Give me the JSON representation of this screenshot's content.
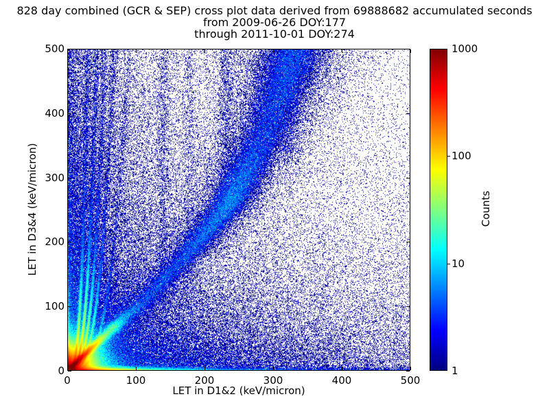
{
  "figure": {
    "title_line1": "828 day combined (GCR & SEP) cross plot data derived from 69888682 accumulated seconds",
    "title_line2": "from 2009-06-26 DOY:177",
    "title_line3": "through 2011-10-01 DOY:274"
  },
  "axes": {
    "xlabel": "LET in D1&2 (keV/micron)",
    "ylabel": "LET in D3&4 (keV/micron)",
    "x_ticks": [
      "0",
      "100",
      "200",
      "300",
      "400",
      "500"
    ],
    "y_ticks": [
      "0",
      "100",
      "200",
      "300",
      "400",
      "500"
    ],
    "x_tick_values": [
      0,
      100,
      200,
      300,
      400,
      500
    ],
    "y_tick_values": [
      0,
      100,
      200,
      300,
      400,
      500
    ]
  },
  "colorbar": {
    "label": "Counts",
    "tick_labels": [
      "1",
      "10",
      "100",
      "1000"
    ],
    "tick_values": [
      1,
      10,
      100,
      1000
    ],
    "min": 1,
    "max": 1000,
    "scale": "log",
    "colormap": "jet"
  },
  "chart_data": {
    "type": "heatmap",
    "title": "828 day combined (GCR & SEP) cross plot data derived from 69888682 accumulated seconds from 2009-06-26 DOY:177 through 2011-10-01 DOY:274",
    "xlabel": "LET in D1&2 (keV/micron)",
    "ylabel": "LET in D3&4 (keV/micron)",
    "xlim": [
      0,
      500
    ],
    "ylim": [
      0,
      500
    ],
    "counts_range": [
      1,
      1000
    ],
    "count_scale": "log10",
    "colormap": "jet",
    "zero_count_color": "#ffffff",
    "min_count_color": "#00007f",
    "max_count_color": "#7f0000",
    "bin_size_kev_per_micron": 1,
    "seed": 1337,
    "density_features": [
      {
        "kind": "corner_peak",
        "amp": 1200,
        "scale": 12
      },
      {
        "kind": "bottom_band",
        "terms": [
          [
            600,
            38
          ],
          [
            35,
            130
          ],
          [
            3,
            700
          ]
        ],
        "sigma": 2.8,
        "p": 1.3
      },
      {
        "kind": "left_band",
        "terms": [
          [
            500,
            16
          ],
          [
            28,
            55
          ],
          [
            3,
            350
          ]
        ],
        "sigma": 2.6,
        "p": 1.3
      },
      {
        "kind": "diag_streak",
        "amp": 1500,
        "len": 14,
        "w0": 2.0,
        "ws": 0.03
      },
      {
        "kind": "diag_streak",
        "amp": 10,
        "len": 30,
        "w0": 6,
        "ws": 0.1
      },
      {
        "kind": "blob",
        "cx": 68,
        "cy": 68,
        "amp": 9,
        "rx": 9,
        "ry": 7
      },
      {
        "kind": "curved_band",
        "pts": [
          [
            0,
            0
          ],
          [
            50,
            55
          ],
          [
            105,
            110
          ],
          [
            180,
            175
          ],
          [
            258,
            235
          ],
          [
            360,
            285
          ],
          [
            430,
            310
          ],
          [
            500,
            332
          ]
        ],
        "w0": 7,
        "wy": 0.05,
        "base": 1.9,
        "blobs": [
          [
            260,
            3.2,
            80
          ],
          [
            465,
            1.1,
            70
          ]
        ],
        "halo": 0.55,
        "halo_mult": 2.4
      },
      {
        "kind": "fingers",
        "c": [
          30,
          43,
          55,
          68,
          90
        ],
        "F": [
          130,
          170,
          110,
          60,
          20
        ],
        "tail": [
          1.6,
          2.0,
          1.5,
          1.2,
          0.7
        ],
        "pow": 0.3,
        "w0": 1.5,
        "wy": 0.004,
        "decay": 52,
        "tail_decay": 500
      },
      {
        "kind": "cloud",
        "amp": 4.0,
        "sx": 150,
        "sy": 45
      },
      {
        "kind": "cloud",
        "amp": 1.1,
        "sx": 320,
        "sy": 95
      },
      {
        "kind": "cloud",
        "amp": 3.5,
        "sx": 30,
        "sy": 200
      },
      {
        "kind": "cloud",
        "amp": 1.4,
        "sx": 65,
        "sy": 420
      },
      {
        "kind": "vstreak",
        "x": 140,
        "amp": 0.3,
        "w": 7,
        "ymin": 80
      },
      {
        "kind": "vstreak",
        "x": 178,
        "amp": 0.22,
        "w": 6,
        "ymin": 80
      },
      {
        "kind": "vstreak",
        "x": 232,
        "amp": 0.4,
        "w": 9,
        "ymin": 260
      },
      {
        "kind": "vstreak",
        "x": 323,
        "amp": 0.35,
        "w": 11,
        "ymin": 340
      },
      {
        "kind": "background",
        "base": 0.025,
        "terms": [
          [
            0.45,
            200,
            260
          ],
          [
            0.1,
            100000,
            250
          ],
          [
            0.1,
            300,
            100000
          ]
        ]
      }
    ]
  }
}
